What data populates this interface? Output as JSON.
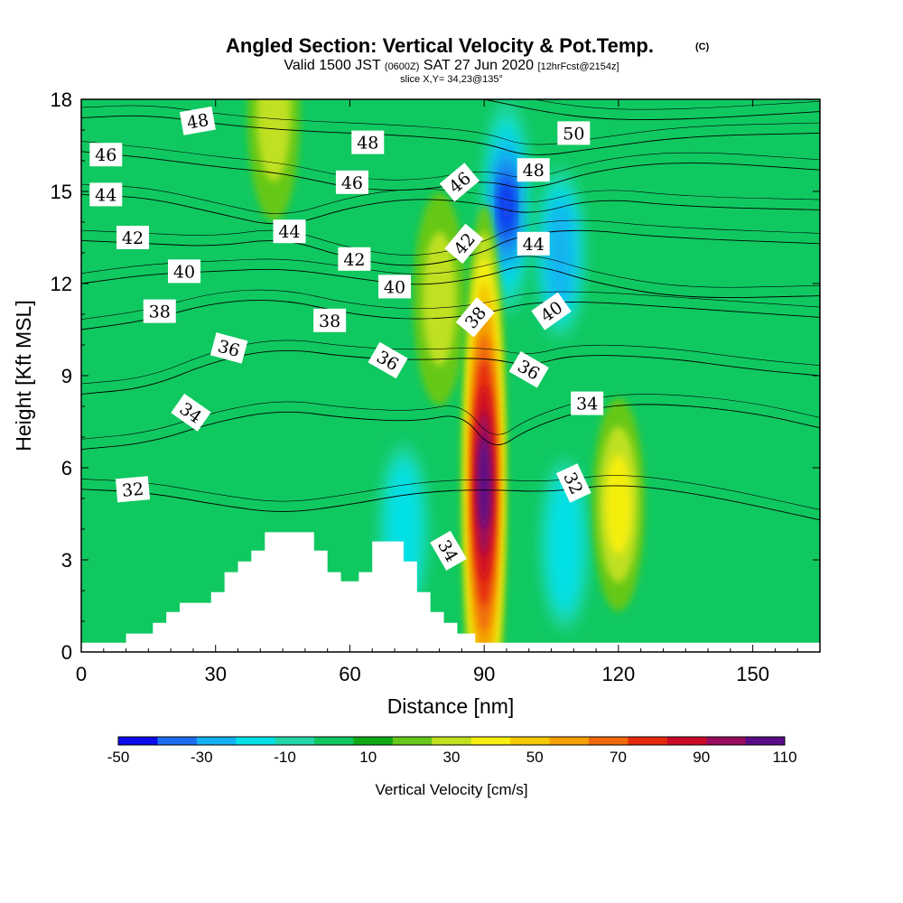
{
  "title": {
    "main": "Angled Section: Vertical Velocity & Pot.Temp.",
    "copyright": "(C)",
    "valid_prefix": "Valid 1500 JST",
    "zulu": "(0600Z)",
    "valid_date": "SAT 27 Jun 2020",
    "forecast": "[12hrFcst@2154z]",
    "slice": "slice X,Y= 34,23@135°"
  },
  "chart_data": {
    "type": "heatmap",
    "xlabel": "Distance [nm]",
    "ylabel": "Height [Kft MSL]",
    "xlim": [
      0,
      165
    ],
    "ylim": [
      0,
      18
    ],
    "xticks": [
      0,
      30,
      60,
      90,
      120,
      150
    ],
    "yticks": [
      0,
      3,
      6,
      9,
      12,
      15,
      18
    ],
    "colorbar": {
      "title": "Vertical Velocity [cm/s]",
      "levels": [
        -50,
        -40,
        -30,
        -20,
        -10,
        0,
        10,
        20,
        30,
        40,
        50,
        60,
        70,
        80,
        90,
        100,
        110
      ],
      "colors": [
        "#0a0aea",
        "#1c6cf0",
        "#15b0f2",
        "#00e0e8",
        "#22d8a8",
        "#10c860",
        "#0faa16",
        "#66c818",
        "#c0e020",
        "#f5ee10",
        "#f5c800",
        "#f5a000",
        "#f06a0a",
        "#e52a10",
        "#cc0a28",
        "#990c60",
        "#5a0c88"
      ],
      "tick_labels": [
        "-50",
        "-30",
        "-10",
        "10",
        "30",
        "50",
        "70",
        "90",
        "110"
      ]
    },
    "terrain_profile": [
      [
        0,
        0.3
      ],
      [
        10,
        0.3
      ],
      [
        10,
        0.6
      ],
      [
        16,
        0.6
      ],
      [
        16,
        0.95
      ],
      [
        19,
        0.95
      ],
      [
        19,
        1.3
      ],
      [
        22,
        1.3
      ],
      [
        22,
        1.6
      ],
      [
        29,
        1.6
      ],
      [
        29,
        1.95
      ],
      [
        32,
        1.95
      ],
      [
        32,
        2.6
      ],
      [
        35,
        2.6
      ],
      [
        35,
        2.95
      ],
      [
        38,
        2.95
      ],
      [
        38,
        3.3
      ],
      [
        41,
        3.3
      ],
      [
        41,
        3.9
      ],
      [
        52,
        3.9
      ],
      [
        52,
        3.3
      ],
      [
        55,
        3.3
      ],
      [
        55,
        2.6
      ],
      [
        58,
        2.6
      ],
      [
        58,
        2.3
      ],
      [
        62,
        2.3
      ],
      [
        62,
        2.6
      ],
      [
        65,
        2.6
      ],
      [
        65,
        3.6
      ],
      [
        72,
        3.6
      ],
      [
        72,
        2.95
      ],
      [
        75,
        2.95
      ],
      [
        75,
        1.95
      ],
      [
        78,
        1.95
      ],
      [
        78,
        1.3
      ],
      [
        81,
        1.3
      ],
      [
        81,
        0.95
      ],
      [
        84,
        0.95
      ],
      [
        84,
        0.6
      ],
      [
        88,
        0.6
      ],
      [
        88,
        0.3
      ],
      [
        165,
        0.3
      ]
    ],
    "updraft_cores": [
      {
        "x": 90,
        "y": 5.5,
        "value": 105
      },
      {
        "x": 120,
        "y": 4.8,
        "value": 35
      },
      {
        "x": 43,
        "y": 17.5,
        "value": 25
      },
      {
        "x": 80,
        "y": 11.5,
        "value": 20
      }
    ],
    "downdraft_cores": [
      {
        "x": 95,
        "y": 14.5,
        "value": -50
      },
      {
        "x": 107,
        "y": 13,
        "value": -30
      },
      {
        "x": 72,
        "y": 4,
        "value": -20
      },
      {
        "x": 108,
        "y": 3.5,
        "value": -25
      }
    ],
    "isentropes": [
      {
        "label": "32",
        "points": [
          [
            0,
            5.3
          ],
          [
            15,
            5.2
          ],
          [
            30,
            4.8
          ],
          [
            45,
            4.5
          ],
          [
            60,
            4.8
          ],
          [
            75,
            5.2
          ],
          [
            90,
            5.3
          ],
          [
            105,
            5.2
          ],
          [
            120,
            5.5
          ],
          [
            140,
            5.1
          ],
          [
            165,
            4.3
          ]
        ]
      },
      {
        "label": "34",
        "points": [
          [
            0,
            6.6
          ],
          [
            15,
            6.8
          ],
          [
            30,
            7.5
          ],
          [
            45,
            7.9
          ],
          [
            60,
            7.6
          ],
          [
            75,
            7.5
          ],
          [
            85,
            7.8
          ],
          [
            92,
            6.5
          ],
          [
            100,
            7.3
          ],
          [
            115,
            8.0
          ],
          [
            130,
            8.1
          ],
          [
            150,
            7.8
          ],
          [
            165,
            7.3
          ]
        ]
      },
      {
        "label": "36",
        "points": [
          [
            0,
            8.4
          ],
          [
            15,
            8.6
          ],
          [
            30,
            9.5
          ],
          [
            45,
            9.9
          ],
          [
            60,
            9.6
          ],
          [
            75,
            9.5
          ],
          [
            90,
            9.6
          ],
          [
            100,
            9.3
          ],
          [
            110,
            9.7
          ],
          [
            130,
            9.6
          ],
          [
            150,
            9.2
          ],
          [
            165,
            9.0
          ]
        ]
      },
      {
        "label": "38",
        "points": [
          [
            0,
            10.5
          ],
          [
            15,
            10.8
          ],
          [
            30,
            11.4
          ],
          [
            45,
            11.5
          ],
          [
            60,
            11.0
          ],
          [
            75,
            10.8
          ],
          [
            90,
            11.0
          ],
          [
            100,
            11.4
          ],
          [
            115,
            11.4
          ],
          [
            135,
            11.2
          ],
          [
            165,
            10.9
          ]
        ]
      },
      {
        "label": "40",
        "points": [
          [
            0,
            12.0
          ],
          [
            15,
            12.3
          ],
          [
            30,
            12.4
          ],
          [
            45,
            12.5
          ],
          [
            60,
            12.2
          ],
          [
            75,
            11.9
          ],
          [
            90,
            12.2
          ],
          [
            100,
            12.7
          ],
          [
            115,
            12.0
          ],
          [
            135,
            11.5
          ],
          [
            165,
            11.6
          ]
        ]
      },
      {
        "label": "42",
        "points": [
          [
            0,
            13.4
          ],
          [
            15,
            13.3
          ],
          [
            30,
            13.2
          ],
          [
            45,
            13.5
          ],
          [
            60,
            12.8
          ],
          [
            75,
            12.5
          ],
          [
            90,
            13.0
          ],
          [
            96,
            13.5
          ],
          [
            110,
            13.8
          ],
          [
            130,
            13.5
          ],
          [
            165,
            13.3
          ]
        ]
      },
      {
        "label": "44",
        "points": [
          [
            0,
            14.9
          ],
          [
            15,
            14.8
          ],
          [
            30,
            14.3
          ],
          [
            45,
            13.8
          ],
          [
            60,
            14.5
          ],
          [
            75,
            14.8
          ],
          [
            90,
            14.6
          ],
          [
            100,
            14.2
          ],
          [
            115,
            14.8
          ],
          [
            135,
            14.5
          ],
          [
            165,
            14.4
          ]
        ]
      },
      {
        "label": "46",
        "points": [
          [
            0,
            16.3
          ],
          [
            15,
            16.1
          ],
          [
            30,
            15.8
          ],
          [
            45,
            15.6
          ],
          [
            60,
            15.1
          ],
          [
            75,
            15.0
          ],
          [
            90,
            15.4
          ],
          [
            100,
            15.0
          ],
          [
            115,
            15.7
          ],
          [
            135,
            16.0
          ],
          [
            165,
            15.7
          ]
        ]
      },
      {
        "label": "48",
        "points": [
          [
            0,
            17.4
          ],
          [
            15,
            17.5
          ],
          [
            30,
            17.2
          ],
          [
            45,
            17.0
          ],
          [
            60,
            16.9
          ],
          [
            75,
            16.8
          ],
          [
            90,
            16.6
          ],
          [
            100,
            16.1
          ],
          [
            115,
            16.4
          ],
          [
            135,
            16.8
          ],
          [
            165,
            16.9
          ]
        ]
      },
      {
        "label": "50",
        "points": [
          [
            90,
            18.0
          ],
          [
            110,
            17.4
          ],
          [
            130,
            17.3
          ],
          [
            165,
            17.6
          ]
        ]
      }
    ],
    "contour_labels": [
      {
        "text": "46",
        "x": 5.5,
        "y": 16.2,
        "angle": 0
      },
      {
        "text": "48",
        "x": 26,
        "y": 17.3,
        "angle": 10
      },
      {
        "text": "48",
        "x": 64,
        "y": 16.6,
        "angle": 0
      },
      {
        "text": "50",
        "x": 110,
        "y": 16.9,
        "angle": 0
      },
      {
        "text": "44",
        "x": 5.5,
        "y": 14.9,
        "angle": 0
      },
      {
        "text": "46",
        "x": 60.5,
        "y": 15.3,
        "angle": 0
      },
      {
        "text": "46",
        "x": 84.5,
        "y": 15.3,
        "angle": 40
      },
      {
        "text": "48",
        "x": 101,
        "y": 15.7,
        "angle": 0
      },
      {
        "text": "42",
        "x": 11.5,
        "y": 13.5,
        "angle": 0
      },
      {
        "text": "44",
        "x": 46.5,
        "y": 13.7,
        "angle": 0
      },
      {
        "text": "42",
        "x": 61,
        "y": 12.8,
        "angle": 0
      },
      {
        "text": "42",
        "x": 85.5,
        "y": 13.3,
        "angle": 50
      },
      {
        "text": "44",
        "x": 101,
        "y": 13.3,
        "angle": 0
      },
      {
        "text": "40",
        "x": 23,
        "y": 12.4,
        "angle": 0
      },
      {
        "text": "40",
        "x": 70,
        "y": 11.9,
        "angle": 0
      },
      {
        "text": "38",
        "x": 17.5,
        "y": 11.1,
        "angle": 0
      },
      {
        "text": "38",
        "x": 55.5,
        "y": 10.8,
        "angle": 0
      },
      {
        "text": "38",
        "x": 88,
        "y": 10.9,
        "angle": 50
      },
      {
        "text": "40",
        "x": 105,
        "y": 11.1,
        "angle": 35
      },
      {
        "text": "36",
        "x": 33,
        "y": 9.9,
        "angle": -15
      },
      {
        "text": "36",
        "x": 68.5,
        "y": 9.5,
        "angle": -30
      },
      {
        "text": "36",
        "x": 100,
        "y": 9.2,
        "angle": -30
      },
      {
        "text": "34",
        "x": 24.5,
        "y": 7.8,
        "angle": -35
      },
      {
        "text": "34",
        "x": 113,
        "y": 8.1,
        "angle": 0
      },
      {
        "text": "32",
        "x": 11.5,
        "y": 5.3,
        "angle": 5
      },
      {
        "text": "32",
        "x": 110,
        "y": 5.5,
        "angle": -65
      },
      {
        "text": "34",
        "x": 82,
        "y": 3.3,
        "angle": -60
      }
    ]
  }
}
